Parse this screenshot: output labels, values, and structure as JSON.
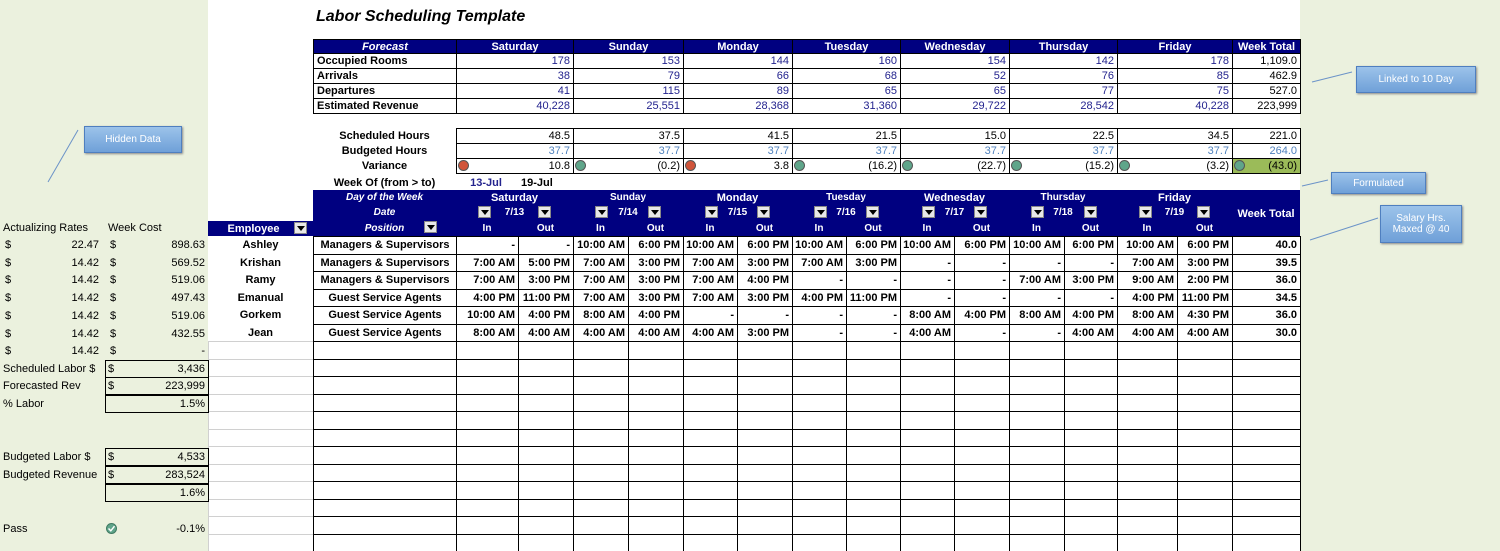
{
  "title": "Labor Scheduling Template",
  "forecast": {
    "header": [
      "Forecast",
      "Saturday",
      "Sunday",
      "Monday",
      "Tuesday",
      "Wednesday",
      "Thursday",
      "Friday",
      "Week Total"
    ],
    "rows": [
      [
        "Occupied Rooms",
        "178",
        "153",
        "144",
        "160",
        "154",
        "142",
        "178",
        "1,109.0"
      ],
      [
        "Arrivals",
        "38",
        "79",
        "66",
        "68",
        "52",
        "76",
        "85",
        "462.9"
      ],
      [
        "Departures",
        "41",
        "115",
        "89",
        "65",
        "65",
        "77",
        "75",
        "527.0"
      ],
      [
        "Estimated Revenue",
        "40,228",
        "25,551",
        "28,368",
        "31,360",
        "29,722",
        "28,542",
        "40,228",
        "223,999"
      ]
    ]
  },
  "hours": {
    "rows": [
      [
        "Scheduled Hours",
        "48.5",
        "37.5",
        "41.5",
        "21.5",
        "15.0",
        "22.5",
        "34.5",
        "221.0"
      ],
      [
        "Budgeted Hours",
        "37.7",
        "37.7",
        "37.7",
        "37.7",
        "37.7",
        "37.7",
        "37.7",
        "264.0"
      ],
      [
        "Variance",
        "10.8",
        "(0.2)",
        "3.8",
        "(16.2)",
        "(22.7)",
        "(15.2)",
        "(3.2)",
        "(43.0)"
      ]
    ],
    "variance_colors": [
      "#d0543a",
      "#5fa58a",
      "#d0543a",
      "#5fa58a",
      "#5fa58a",
      "#5fa58a",
      "#5fa58a",
      "#5fa58a"
    ],
    "total_fill": "#9bbb59"
  },
  "week_of": {
    "label": "Week Of (from > to)",
    "from": "13-Jul",
    "to": "19-Jul"
  },
  "schedule": {
    "labels": {
      "day_of_week": "Day of the Week",
      "date": "Date",
      "position": "Position",
      "employee": "Employee",
      "week_total": "Week Total",
      "in": "In",
      "out": "Out"
    },
    "days": [
      {
        "name": "Saturday",
        "date": "7/13"
      },
      {
        "name": "Sunday",
        "date": "7/14"
      },
      {
        "name": "Monday",
        "date": "7/15"
      },
      {
        "name": "Tuesday",
        "date": "7/16"
      },
      {
        "name": "Wednesday",
        "date": "7/17"
      },
      {
        "name": "Thursday",
        "date": "7/18"
      },
      {
        "name": "Friday",
        "date": "7/19"
      }
    ],
    "rows": [
      {
        "employee": "Ashley",
        "position": "Managers & Supervisors",
        "times": [
          "-",
          "-",
          "10:00 AM",
          "6:00 PM",
          "10:00 AM",
          "6:00 PM",
          "10:00 AM",
          "6:00 PM",
          "10:00 AM",
          "6:00 PM",
          "10:00 AM",
          "6:00 PM",
          "10:00 AM",
          "6:00 PM"
        ],
        "total": "40.0"
      },
      {
        "employee": "Krishan",
        "position": "Managers & Supervisors",
        "times": [
          "7:00 AM",
          "5:00 PM",
          "7:00 AM",
          "3:00 PM",
          "7:00 AM",
          "3:00 PM",
          "7:00 AM",
          "3:00 PM",
          "-",
          "-",
          "-",
          "-",
          "7:00 AM",
          "3:00 PM"
        ],
        "total": "39.5"
      },
      {
        "employee": "Ramy",
        "position": "Managers & Supervisors",
        "times": [
          "7:00 AM",
          "3:00 PM",
          "7:00 AM",
          "3:00 PM",
          "7:00 AM",
          "4:00 PM",
          "-",
          "-",
          "-",
          "-",
          "7:00 AM",
          "3:00 PM",
          "9:00 AM",
          "2:00 PM"
        ],
        "total": "36.0"
      },
      {
        "employee": "Emanual",
        "position": "Guest Service Agents",
        "times": [
          "4:00 PM",
          "11:00 PM",
          "7:00 AM",
          "3:00 PM",
          "7:00 AM",
          "3:00 PM",
          "4:00 PM",
          "11:00 PM",
          "-",
          "-",
          "-",
          "-",
          "4:00 PM",
          "11:00 PM"
        ],
        "total": "34.5"
      },
      {
        "employee": "Gorkem",
        "position": "Guest Service Agents",
        "times": [
          "10:00 AM",
          "4:00 PM",
          "8:00 AM",
          "4:00 PM",
          "-",
          "-",
          "-",
          "-",
          "8:00 AM",
          "4:00 PM",
          "8:00 AM",
          "4:00 PM",
          "8:00 AM",
          "4:30 PM"
        ],
        "total": "36.0"
      },
      {
        "employee": "Jean",
        "position": "Guest Service Agents",
        "times": [
          "8:00 AM",
          "4:00 AM",
          "4:00 AM",
          "4:00 AM",
          "4:00 AM",
          "3:00 PM",
          "-",
          "-",
          "4:00 AM",
          "-",
          "-",
          "4:00 AM",
          "4:00 AM",
          "4:00 AM"
        ],
        "total": "30.0"
      }
    ]
  },
  "rates": {
    "header": [
      "Actualizing Rates",
      "Week Cost"
    ],
    "currency": "$",
    "rows": [
      [
        "22.47",
        "898.63"
      ],
      [
        "14.42",
        "569.52"
      ],
      [
        "14.42",
        "519.06"
      ],
      [
        "14.42",
        "497.43"
      ],
      [
        "14.42",
        "519.06"
      ],
      [
        "14.42",
        "432.55"
      ],
      [
        "14.42",
        "-"
      ]
    ]
  },
  "summary": [
    {
      "label": "Scheduled Labor $",
      "value": "3,436",
      "currency": true
    },
    {
      "label": "Forecasted Rev",
      "value": "223,999",
      "currency": true
    },
    {
      "label": "% Labor",
      "value": "1.5%"
    },
    {
      "label": "Budgeted Labor $",
      "value": "4,533",
      "currency": true
    },
    {
      "label": "Budgeted Revenue",
      "value": "283,524",
      "currency": true
    },
    {
      "value": "1.6%"
    },
    {
      "label": "Pass",
      "value": "-0.1%",
      "check": true
    }
  ],
  "callouts": [
    "Hidden Data",
    "Linked to 10 Day",
    "Formulated",
    "Salary Hrs. Maxed @ 40"
  ]
}
